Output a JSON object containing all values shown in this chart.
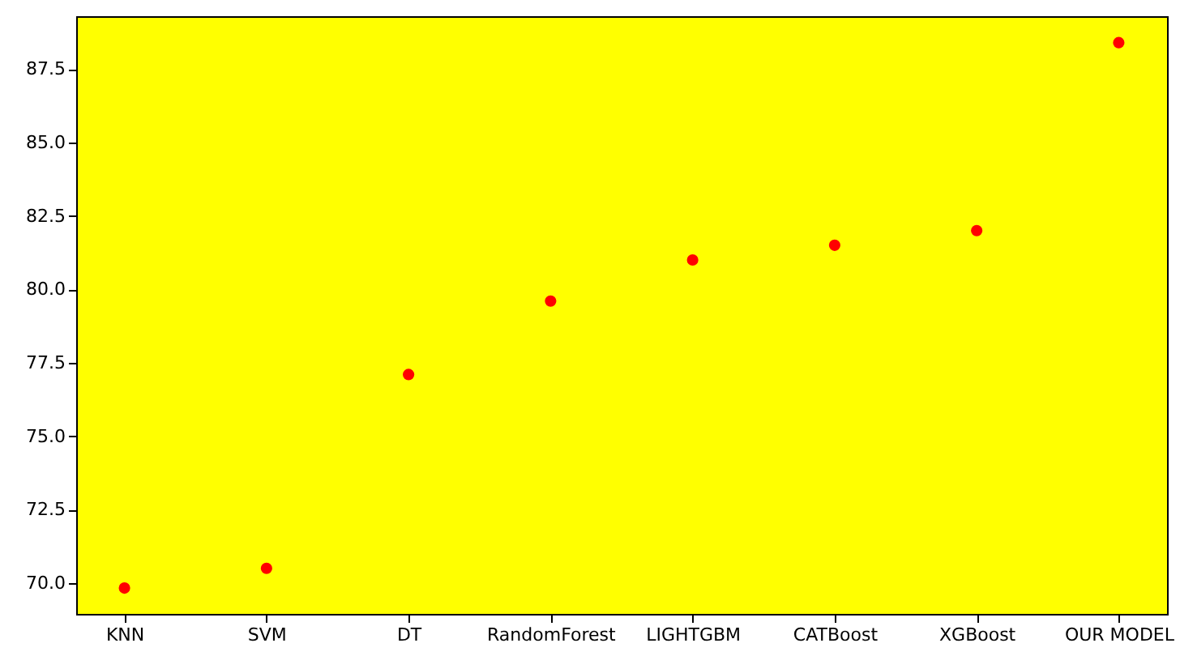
{
  "chart_data": {
    "type": "scatter",
    "categories": [
      "KNN",
      "SVM",
      "DT",
      "RandomForest",
      "LIGHTGBM",
      "CATBoost",
      "XGBoost",
      "OUR MODEL"
    ],
    "series": [
      {
        "color": "#ff0000",
        "values": [
          69.83,
          70.5,
          77.1,
          79.6,
          81.0,
          81.5,
          82.0,
          88.4
        ]
      }
    ],
    "ylim": [
      68.95,
      89.3
    ],
    "yticks": [
      {
        "value": 70,
        "label": "70.0"
      },
      {
        "value": 72.5,
        "label": "72.5"
      },
      {
        "value": 75,
        "label": "75.0"
      },
      {
        "value": 77.5,
        "label": "77.5"
      },
      {
        "value": 80,
        "label": "80.0"
      },
      {
        "value": 82.5,
        "label": "82.5"
      },
      {
        "value": 85,
        "label": "85.0"
      },
      {
        "value": 87.5,
        "label": "87.5"
      }
    ],
    "grid": false,
    "marker": "circle"
  }
}
